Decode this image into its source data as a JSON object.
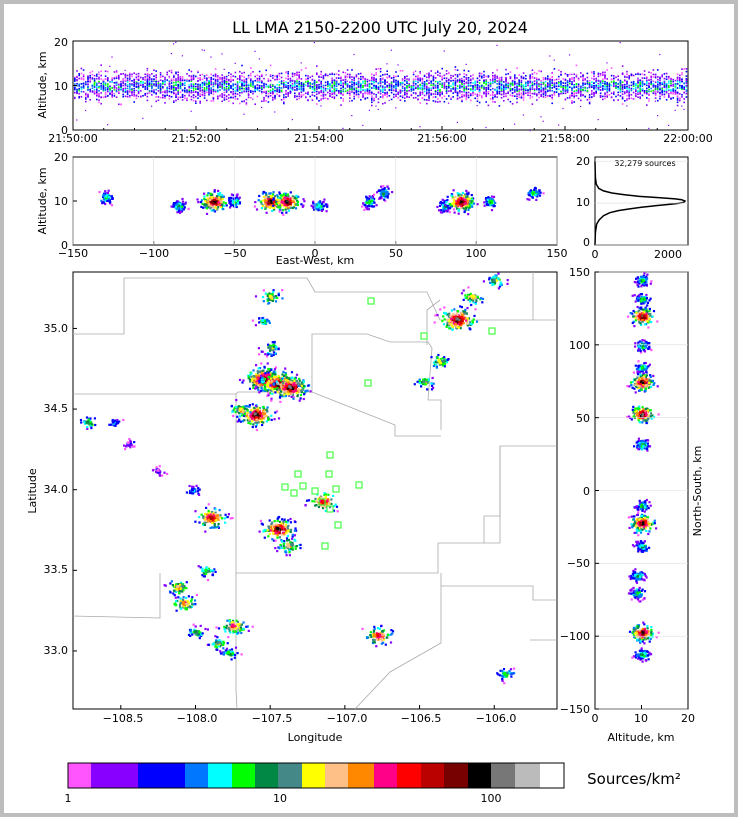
{
  "title": "LL LMA 2150-2200 UTC July 20, 2024",
  "time_panel": {
    "ylabel": "Altitude, km",
    "y_ticks": [
      "0",
      "10",
      "20"
    ],
    "x_ticks": [
      "21:50:00",
      "21:52:00",
      "21:54:00",
      "21:56:00",
      "21:58:00",
      "22:00:00"
    ]
  },
  "ew_panel": {
    "ylabel": "Altitude, km",
    "xlabel": "East-West, km",
    "y_ticks": [
      "0",
      "10",
      "20"
    ],
    "x_ticks": [
      "−150",
      "−100",
      "−50",
      "0",
      "50",
      "100",
      "150"
    ]
  },
  "hist_panel": {
    "label": "32,279 sources",
    "y_ticks": [
      "0",
      "10",
      "20"
    ],
    "x_ticks": [
      "0",
      "2000"
    ]
  },
  "map_panel": {
    "xlabel": "Longitude",
    "ylabel": "Latitude",
    "x_ticks": [
      "−108.5",
      "−108.0",
      "−107.5",
      "−107.0",
      "−106.5",
      "−106.0"
    ],
    "y_ticks": [
      "33.0",
      "33.5",
      "34.0",
      "34.5",
      "35.0"
    ]
  },
  "ns_panel": {
    "xlabel": "Altitude, km",
    "ylabel": "North-South, km",
    "x_ticks": [
      "0",
      "10",
      "20"
    ],
    "y_ticks": [
      "−150",
      "−100",
      "−50",
      "0",
      "50",
      "100",
      "150"
    ]
  },
  "colorbar": {
    "label": "Sources/km²",
    "ticks": [
      "1",
      "10",
      "100"
    ],
    "colors": [
      "#ff55ff",
      "#8800ff",
      "#8800ff",
      "#0000ff",
      "#0000ff",
      "#0077ff",
      "#00ffff",
      "#00ff00",
      "#008844",
      "#448888",
      "#ffff00",
      "#ffc088",
      "#ff8800",
      "#ff0088",
      "#ff0000",
      "#bb0000",
      "#770000",
      "#000000",
      "#777777",
      "#bbbbbb",
      "#ffffff"
    ]
  },
  "chart_data": [
    {
      "type": "scatter",
      "panel": "altitude vs time",
      "xlabel": "",
      "ylabel": "Altitude, km",
      "xlim": [
        "21:50:00",
        "22:00:00"
      ],
      "ylim": [
        0,
        20
      ],
      "typical_altitude_km": [
        6,
        14
      ],
      "peak_altitude_km": 10
    },
    {
      "type": "scatter",
      "panel": "altitude vs east-west",
      "xlabel": "East-West, km",
      "ylabel": "Altitude, km",
      "xlim": [
        -150,
        150
      ],
      "ylim": [
        0,
        20
      ],
      "clusters": [
        {
          "x": -130,
          "alt": 11
        },
        {
          "x": -85,
          "alt": 9
        },
        {
          "x": -63,
          "alt": 10
        },
        {
          "x": -50,
          "alt": 10
        },
        {
          "x": -28,
          "alt": 10
        },
        {
          "x": -18,
          "alt": 10
        },
        {
          "x": 2,
          "alt": 9
        },
        {
          "x": 33,
          "alt": 10
        },
        {
          "x": 42,
          "alt": 12
        },
        {
          "x": 80,
          "alt": 9
        },
        {
          "x": 90,
          "alt": 10
        },
        {
          "x": 108,
          "alt": 10
        },
        {
          "x": 135,
          "alt": 12
        }
      ]
    },
    {
      "type": "line",
      "panel": "altitude histogram",
      "xlim": [
        0,
        2200
      ],
      "ylim": [
        0,
        21
      ],
      "x": [
        0,
        10,
        40,
        100,
        200,
        350,
        550,
        800,
        1100,
        1450,
        1750,
        1950,
        2100,
        2130,
        2050,
        1900,
        1500,
        1050,
        700,
        400,
        200,
        90,
        30,
        10,
        0
      ],
      "y": [
        0,
        3,
        5,
        6,
        7,
        7.7,
        8.2,
        8.6,
        9.0,
        9.4,
        9.7,
        9.9,
        10.2,
        10.5,
        10.8,
        11.0,
        11.3,
        11.6,
        12.0,
        12.4,
        12.9,
        13.5,
        14.5,
        16,
        20
      ],
      "total_sources": 32279
    },
    {
      "type": "heatmap",
      "panel": "plan view",
      "xlabel": "Longitude",
      "ylabel": "Latitude",
      "xlim": [
        -108.82,
        -105.58
      ],
      "ylim": [
        32.64,
        35.35
      ],
      "cells": [
        {
          "lon": -108.72,
          "lat": 34.42,
          "density": 6
        },
        {
          "lon": -108.55,
          "lat": 34.42,
          "density": 2
        },
        {
          "lon": -108.45,
          "lat": 34.29,
          "density": 1
        },
        {
          "lon": -108.25,
          "lat": 34.12,
          "density": 1
        },
        {
          "lon": -108.02,
          "lat": 34.0,
          "density": 2
        },
        {
          "lon": -107.9,
          "lat": 33.83,
          "density": 45
        },
        {
          "lon": -108.12,
          "lat": 33.4,
          "density": 15
        },
        {
          "lon": -108.08,
          "lat": 33.3,
          "density": 20
        },
        {
          "lon": -108.0,
          "lat": 33.12,
          "density": 6
        },
        {
          "lon": -107.93,
          "lat": 33.5,
          "density": 5
        },
        {
          "lon": -107.75,
          "lat": 33.16,
          "density": 25
        },
        {
          "lon": -107.85,
          "lat": 33.05,
          "density": 8
        },
        {
          "lon": -107.78,
          "lat": 32.99,
          "density": 5
        },
        {
          "lon": -107.45,
          "lat": 33.76,
          "density": 60
        },
        {
          "lon": -107.38,
          "lat": 33.66,
          "density": 15
        },
        {
          "lon": -107.15,
          "lat": 33.93,
          "density": 35
        },
        {
          "lon": -107.6,
          "lat": 34.47,
          "density": 80
        },
        {
          "lon": -107.7,
          "lat": 34.5,
          "density": 12
        },
        {
          "lon": -107.55,
          "lat": 34.69,
          "density": 120
        },
        {
          "lon": -107.45,
          "lat": 34.66,
          "density": 150
        },
        {
          "lon": -107.37,
          "lat": 34.64,
          "density": 95
        },
        {
          "lon": -107.5,
          "lat": 34.88,
          "density": 8
        },
        {
          "lon": -107.55,
          "lat": 35.05,
          "density": 4
        },
        {
          "lon": -107.5,
          "lat": 35.2,
          "density": 10
        },
        {
          "lon": -106.78,
          "lat": 33.1,
          "density": 30
        },
        {
          "lon": -106.37,
          "lat": 34.8,
          "density": 10
        },
        {
          "lon": -106.47,
          "lat": 34.67,
          "density": 8
        },
        {
          "lon": -106.25,
          "lat": 35.06,
          "density": 90
        },
        {
          "lon": -106.15,
          "lat": 35.2,
          "density": 12
        },
        {
          "lon": -106.0,
          "lat": 35.3,
          "density": 8
        },
        {
          "lon": -105.93,
          "lat": 32.86,
          "density": 5
        }
      ],
      "station_count": 17
    },
    {
      "type": "scatter",
      "panel": "altitude vs north-south",
      "xlabel": "Altitude, km",
      "ylabel": "North-South, km",
      "xlim": [
        0,
        20
      ],
      "ylim": [
        -150,
        150
      ],
      "clusters": [
        {
          "alt": 10,
          "ns": 145
        },
        {
          "alt": 10,
          "ns": 132
        },
        {
          "alt": 10,
          "ns": 120
        },
        {
          "alt": 10,
          "ns": 100
        },
        {
          "alt": 10,
          "ns": 85
        },
        {
          "alt": 10,
          "ns": 75
        },
        {
          "alt": 10,
          "ns": 53
        },
        {
          "alt": 10,
          "ns": 32
        },
        {
          "alt": 10,
          "ns": -10
        },
        {
          "alt": 10,
          "ns": -22
        },
        {
          "alt": 10,
          "ns": -38
        },
        {
          "alt": 9,
          "ns": -58
        },
        {
          "alt": 9,
          "ns": -70
        },
        {
          "alt": 10,
          "ns": -97
        },
        {
          "alt": 10,
          "ns": -112
        }
      ]
    }
  ]
}
